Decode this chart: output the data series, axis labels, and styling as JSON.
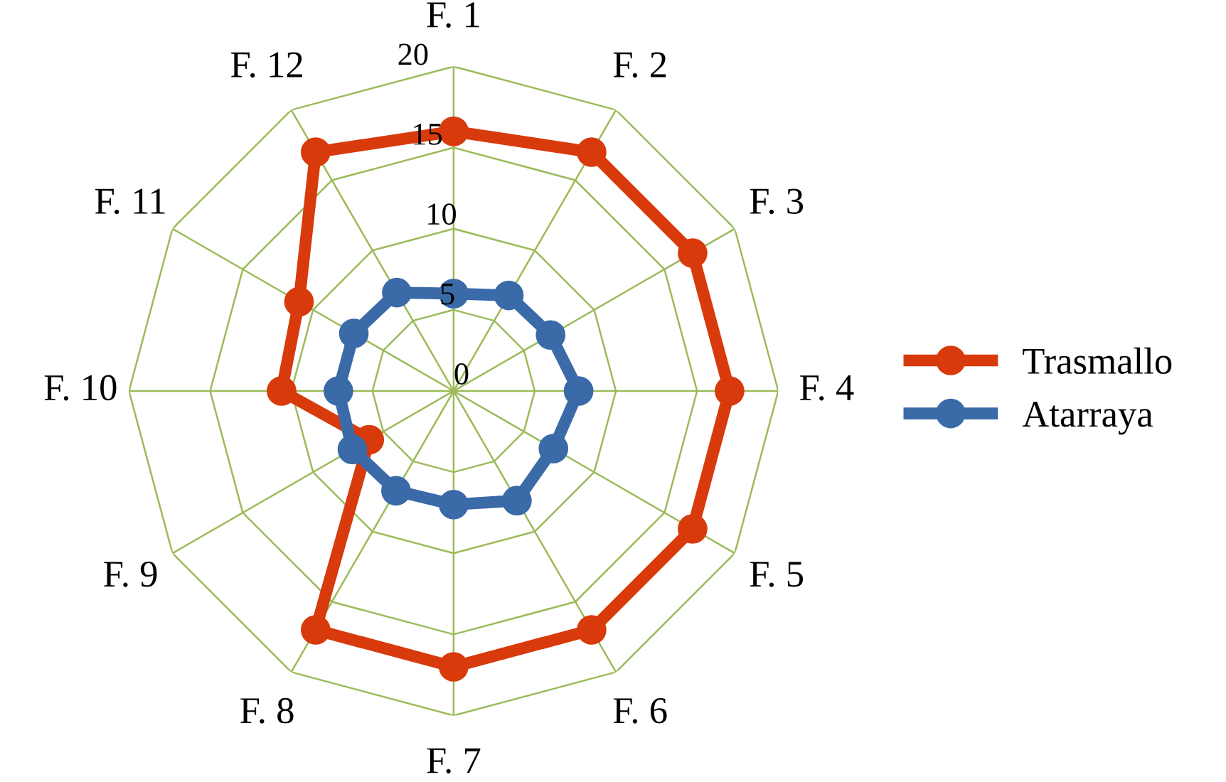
{
  "chart_data": {
    "type": "radar",
    "categories": [
      "F. 1",
      "F. 2",
      "F. 3",
      "F. 4",
      "F. 5",
      "F. 6",
      "F. 7",
      "F. 8",
      "F. 9",
      "F. 10",
      "F. 11",
      "F. 12"
    ],
    "series": [
      {
        "name": "Trasmallo",
        "color": "#d83a0c",
        "values": [
          16,
          17,
          17,
          17,
          17,
          17,
          17,
          17,
          6,
          10.6,
          11,
          17
        ]
      },
      {
        "name": "Atarraya",
        "color": "#3a6aa8",
        "values": [
          6,
          6.8,
          6.9,
          7.7,
          7.1,
          7.8,
          7,
          7.1,
          7.2,
          7.1,
          7.1,
          7
        ]
      }
    ],
    "ylim": [
      0,
      20
    ],
    "yticks": [
      0,
      5,
      10,
      15,
      20
    ],
    "grid": true,
    "legend": "right",
    "marker": "circle",
    "line_style": "solid"
  }
}
